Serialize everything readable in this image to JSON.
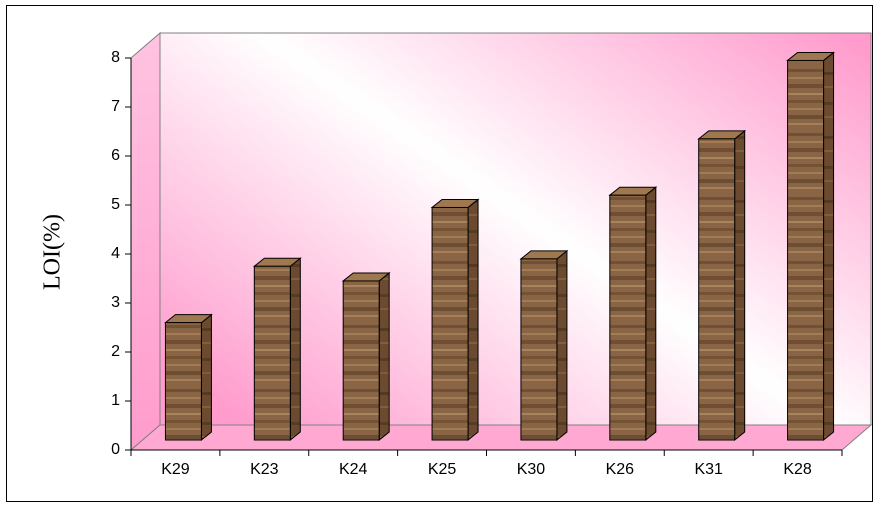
{
  "chart_data": {
    "type": "bar",
    "categories": [
      "K29",
      "K23",
      "K24",
      "K25",
      "K30",
      "K26",
      "K31",
      "K28"
    ],
    "values": [
      2.6,
      3.75,
      3.45,
      4.95,
      3.9,
      5.2,
      6.35,
      7.95
    ],
    "title": "",
    "xlabel": "",
    "ylabel": "LOI(%)",
    "ylim": [
      0,
      8
    ],
    "yticks": [
      0,
      1,
      2,
      3,
      4,
      5,
      6,
      7,
      8
    ],
    "grid": false,
    "legend": "none",
    "style": "3d-bar",
    "colors": {
      "wall_gradient": [
        "#ff9ccd",
        "#ffffff",
        "#ff9ccd"
      ],
      "bar_front": "#8a6545",
      "bar_top": "#a07850",
      "bar_side": "#6b4a30"
    }
  }
}
